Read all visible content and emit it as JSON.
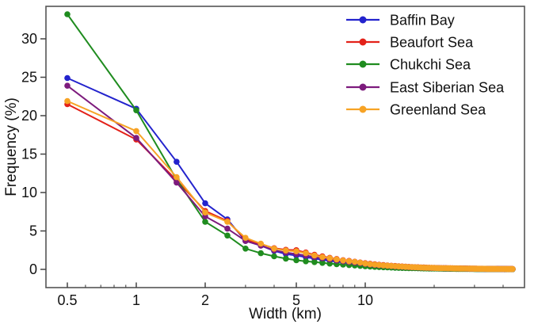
{
  "figure": {
    "description_label": "Line chart of lead width frequency distributions for five Arctic seas"
  },
  "chart_data": {
    "type": "line",
    "title": "",
    "xlabel": "Width (km)",
    "ylabel": "Frequency (%)",
    "x_scale": "log",
    "xlim": [
      0.4,
      50
    ],
    "ylim": [
      -2.4,
      34.2
    ],
    "grid": false,
    "legend_position": "upper right",
    "x_major_ticks": [
      0.5,
      1,
      2,
      5,
      10
    ],
    "x_major_tick_labels": [
      "0.5",
      "1",
      "2",
      "5",
      "10"
    ],
    "x_minor_ticks": [
      0.6,
      0.7,
      0.8,
      0.9,
      3,
      4,
      6,
      7,
      8,
      9,
      20,
      30,
      40
    ],
    "y_ticks": [
      0,
      5,
      10,
      15,
      20,
      25,
      30
    ],
    "y_tick_labels": [
      "0",
      "5",
      "10",
      "15",
      "20",
      "25",
      "30"
    ],
    "x": [
      0.5,
      1,
      1.5,
      2,
      2.5,
      3,
      3.5,
      4,
      4.5,
      5,
      5.5,
      6,
      6.5,
      7,
      7.5,
      8,
      8.5,
      9,
      9.5,
      10,
      10.5,
      11,
      11.5,
      12,
      12.5,
      13,
      13.5,
      14,
      14.5,
      15,
      15.5,
      16,
      16.5,
      17,
      17.5,
      18,
      18.5,
      19,
      19.5,
      20,
      20.5,
      21,
      21.5,
      22,
      22.5,
      23,
      23.5,
      24,
      24.5,
      25,
      25.5,
      26,
      26.5,
      27,
      27.5,
      28,
      28.5,
      29,
      29.5,
      30,
      30.5,
      31,
      31.5,
      32,
      32.5,
      33,
      33.5,
      34,
      34.5,
      35,
      35.5,
      36,
      36.5,
      37,
      37.5,
      38,
      38.5,
      39,
      39.5,
      40,
      40.5,
      41,
      41.5,
      42,
      42.5,
      43,
      43.5,
      44
    ],
    "series": [
      {
        "name": "Baffin Bay",
        "color": "#2323cd",
        "values": [
          24.9,
          20.9,
          14.0,
          8.6,
          6.5,
          3.7,
          3.1,
          2.4,
          2.0,
          1.8,
          1.6,
          1.4,
          1.25,
          1.1,
          1.0,
          0.9,
          0.8,
          0.72,
          0.66,
          0.6,
          0.54,
          0.5,
          0.45,
          0.42,
          0.38,
          0.36,
          0.33,
          0.31,
          0.29,
          0.27,
          0.25,
          0.23,
          0.22,
          0.21,
          0.2,
          0.19,
          0.18,
          0.17,
          0.16,
          0.15,
          0.14,
          0.14,
          0.13,
          0.12,
          0.12,
          0.11,
          0.11,
          0.1,
          0.1,
          0.1,
          0.09,
          0.09,
          0.09,
          0.08,
          0.08,
          0.08,
          0.07,
          0.07,
          0.07,
          0.07,
          0.06,
          0.06,
          0.06,
          0.06,
          0.06,
          0.06,
          0.05,
          0.05,
          0.05,
          0.05,
          0.05,
          0.05,
          0.05,
          0.04,
          0.04,
          0.04,
          0.04,
          0.04,
          0.04,
          0.04,
          0.04,
          0.04,
          0.04,
          0.03,
          0.03,
          0.03,
          0.03,
          0.03
        ]
      },
      {
        "name": "Beaufort Sea",
        "color": "#e32119",
        "values": [
          21.5,
          16.9,
          11.6,
          7.6,
          6.3,
          3.9,
          3.3,
          2.75,
          2.55,
          2.5,
          2.2,
          1.9,
          1.7,
          1.5,
          1.35,
          1.2,
          1.1,
          1.0,
          0.9,
          0.8,
          0.73,
          0.66,
          0.6,
          0.56,
          0.51,
          0.47,
          0.44,
          0.41,
          0.38,
          0.36,
          0.33,
          0.31,
          0.29,
          0.28,
          0.26,
          0.25,
          0.23,
          0.22,
          0.21,
          0.2,
          0.19,
          0.18,
          0.17,
          0.17,
          0.16,
          0.15,
          0.14,
          0.14,
          0.13,
          0.13,
          0.12,
          0.12,
          0.11,
          0.11,
          0.11,
          0.1,
          0.1,
          0.1,
          0.09,
          0.09,
          0.09,
          0.08,
          0.08,
          0.08,
          0.08,
          0.07,
          0.07,
          0.07,
          0.07,
          0.07,
          0.06,
          0.06,
          0.06,
          0.06,
          0.06,
          0.06,
          0.05,
          0.05,
          0.05,
          0.05,
          0.05,
          0.05,
          0.05,
          0.05,
          0.04,
          0.04,
          0.04,
          0.04
        ]
      },
      {
        "name": "Chukchi Sea",
        "color": "#1f8c1f",
        "values": [
          33.2,
          20.7,
          11.7,
          6.2,
          4.4,
          2.7,
          2.1,
          1.7,
          1.4,
          1.2,
          1.05,
          0.95,
          0.85,
          0.75,
          0.68,
          0.62,
          0.56,
          0.5,
          0.45,
          0.4,
          0.36,
          0.33,
          0.3,
          0.28,
          0.26,
          0.24,
          0.22,
          0.2,
          0.19,
          0.18,
          0.17,
          0.16,
          0.15,
          0.14,
          0.13,
          0.12,
          0.12,
          0.11,
          0.11,
          0.1,
          0.1,
          0.09,
          0.09,
          0.08,
          0.08,
          0.08,
          0.07,
          0.07,
          0.07,
          0.06,
          0.06,
          0.06,
          0.06,
          0.05,
          0.05,
          0.05,
          0.05,
          0.05,
          0.05,
          0.04,
          0.04,
          0.04,
          0.04,
          0.04,
          0.04,
          0.04,
          0.04,
          0.03,
          0.03,
          0.03,
          0.03,
          0.03,
          0.03,
          0.03,
          0.03,
          0.03,
          0.03,
          0.03,
          0.03,
          0.03,
          0.02,
          0.02,
          0.02,
          0.02,
          0.02,
          0.02,
          0.02,
          0.02
        ]
      },
      {
        "name": "East Siberian Sea",
        "color": "#7d1b7d",
        "values": [
          23.9,
          17.1,
          11.3,
          6.9,
          5.3,
          3.7,
          3.1,
          2.5,
          2.2,
          2.0,
          1.8,
          1.6,
          1.45,
          1.3,
          1.15,
          1.05,
          0.95,
          0.88,
          0.8,
          0.7,
          0.63,
          0.58,
          0.53,
          0.49,
          0.45,
          0.41,
          0.38,
          0.36,
          0.33,
          0.31,
          0.29,
          0.27,
          0.26,
          0.24,
          0.23,
          0.22,
          0.2,
          0.19,
          0.18,
          0.18,
          0.17,
          0.16,
          0.15,
          0.14,
          0.14,
          0.13,
          0.13,
          0.12,
          0.12,
          0.11,
          0.11,
          0.1,
          0.1,
          0.1,
          0.09,
          0.09,
          0.09,
          0.08,
          0.08,
          0.08,
          0.08,
          0.07,
          0.07,
          0.07,
          0.07,
          0.06,
          0.06,
          0.06,
          0.06,
          0.06,
          0.06,
          0.05,
          0.05,
          0.05,
          0.05,
          0.05,
          0.05,
          0.05,
          0.04,
          0.04,
          0.04,
          0.04,
          0.04,
          0.04,
          0.04,
          0.04,
          0.04,
          0.04
        ]
      },
      {
        "name": "Greenland Sea",
        "color": "#f7a325",
        "values": [
          21.9,
          18.0,
          12.0,
          7.4,
          6.2,
          4.1,
          3.35,
          2.7,
          2.45,
          2.35,
          2.1,
          1.8,
          1.6,
          1.45,
          1.3,
          1.15,
          1.05,
          0.98,
          0.88,
          0.75,
          0.68,
          0.62,
          0.57,
          0.52,
          0.48,
          0.44,
          0.41,
          0.38,
          0.36,
          0.33,
          0.31,
          0.29,
          0.28,
          0.26,
          0.24,
          0.23,
          0.22,
          0.21,
          0.2,
          0.19,
          0.18,
          0.17,
          0.16,
          0.15,
          0.15,
          0.14,
          0.14,
          0.13,
          0.12,
          0.12,
          0.12,
          0.11,
          0.11,
          0.1,
          0.1,
          0.1,
          0.09,
          0.09,
          0.09,
          0.08,
          0.08,
          0.08,
          0.08,
          0.07,
          0.07,
          0.07,
          0.07,
          0.06,
          0.06,
          0.06,
          0.06,
          0.06,
          0.06,
          0.06,
          0.05,
          0.05,
          0.05,
          0.05,
          0.05,
          0.05,
          0.05,
          0.05,
          0.04,
          0.04,
          0.04,
          0.04,
          0.04,
          0.04
        ]
      }
    ],
    "style": {
      "frame_color": "#555555",
      "tick_color": "#444444",
      "text_color": "#111111",
      "background": "#ffffff"
    }
  }
}
